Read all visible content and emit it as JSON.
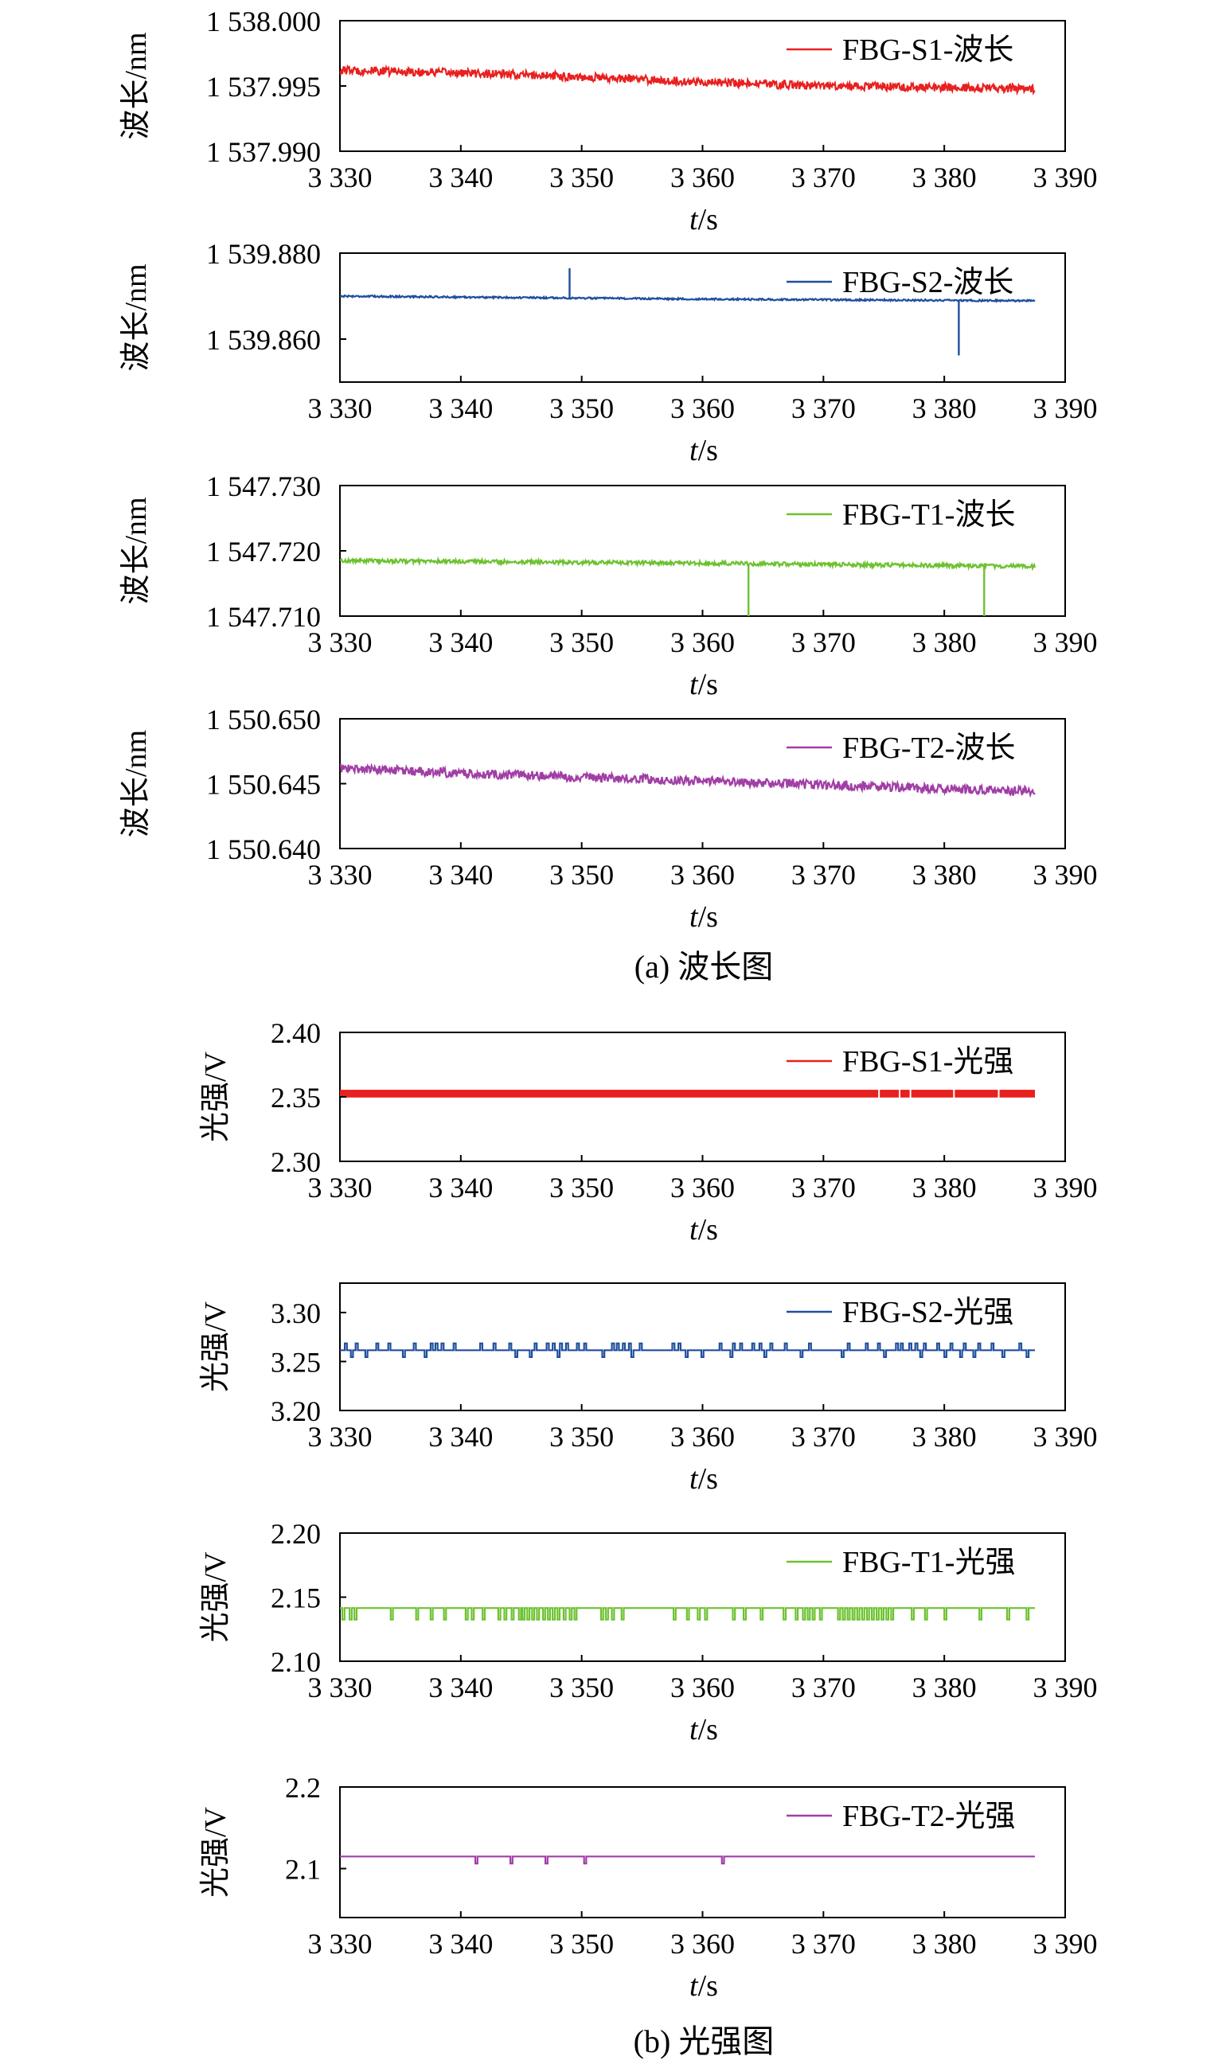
{
  "chart_data": [
    {
      "type": "line",
      "name": "wavelength-s1",
      "xlabel_italic": "t",
      "xlabel_unit": "/s",
      "ylabel": "波长/nm",
      "xlim": [
        3330,
        3390
      ],
      "xticks": [
        3330,
        3340,
        3350,
        3360,
        3370,
        3380,
        3390
      ],
      "xtick_labels": [
        "3 330",
        "3 340",
        "3 350",
        "3 360",
        "3 370",
        "3 380",
        "3 390"
      ],
      "ylim": [
        1537.99,
        1538.0
      ],
      "yticks": [
        1537.99,
        1537.995,
        1538.0
      ],
      "ytick_labels": [
        "1 537.990",
        "1 537.995",
        "1 538.000"
      ],
      "color": "#e8201f",
      "series": [
        {
          "name": "FBG-S1-波长",
          "x": [
            3330,
            3340,
            3350,
            3360,
            3370,
            3380,
            3387.5
          ],
          "y": [
            1537.9962,
            1537.996,
            1537.9957,
            1537.9953,
            1537.995,
            1537.9949,
            1537.9948
          ],
          "noise": 0.00032,
          "spikes": []
        }
      ]
    },
    {
      "type": "line",
      "name": "wavelength-s2",
      "xlabel_italic": "t",
      "xlabel_unit": "/s",
      "ylabel": "波长/nm",
      "xlim": [
        3330,
        3390
      ],
      "xticks": [
        3330,
        3340,
        3350,
        3360,
        3370,
        3380,
        3390
      ],
      "xtick_labels": [
        "3 330",
        "3 340",
        "3 350",
        "3 360",
        "3 370",
        "3 380",
        "3 390"
      ],
      "ylim": [
        1539.85,
        1539.88
      ],
      "yticks": [
        1539.86,
        1539.88
      ],
      "ytick_labels": [
        "1 539.860",
        "1 539.880"
      ],
      "color": "#1f4e9d",
      "series": [
        {
          "name": "FBG-S2-波长",
          "x": [
            3330,
            3360,
            3387.5
          ],
          "y": [
            1539.87,
            1539.8693,
            1539.8689
          ],
          "noise": 0.0002,
          "spikes": [
            [
              3349.0,
              1539.8765
            ],
            [
              3381.2,
              1539.8562
            ]
          ]
        }
      ]
    },
    {
      "type": "line",
      "name": "wavelength-t1",
      "xlabel_italic": "t",
      "xlabel_unit": "/s",
      "ylabel": "波长/nm",
      "xlim": [
        3330,
        3390
      ],
      "xticks": [
        3330,
        3340,
        3350,
        3360,
        3370,
        3380,
        3390
      ],
      "xtick_labels": [
        "3 330",
        "3 340",
        "3 350",
        "3 360",
        "3 370",
        "3 380",
        "3 390"
      ],
      "ylim": [
        1547.71,
        1547.73
      ],
      "yticks": [
        1547.71,
        1547.72,
        1547.73
      ],
      "ytick_labels": [
        "1 547.710",
        "1 547.720",
        "1 547.730"
      ],
      "color": "#6cc22f",
      "series": [
        {
          "name": "FBG-T1-波长",
          "x": [
            3330,
            3360,
            3387.5
          ],
          "y": [
            1547.7185,
            1547.7181,
            1547.7176
          ],
          "noise": 0.0003,
          "spikes": [
            [
              3363.8,
              1547.71
            ],
            [
              3383.3,
              1547.71
            ]
          ]
        }
      ]
    },
    {
      "type": "line",
      "name": "wavelength-t2",
      "xlabel_italic": "t",
      "xlabel_unit": "/s",
      "ylabel": "波长/nm",
      "xlim": [
        3330,
        3390
      ],
      "xticks": [
        3330,
        3340,
        3350,
        3360,
        3370,
        3380,
        3390
      ],
      "xtick_labels": [
        "3 330",
        "3 340",
        "3 350",
        "3 360",
        "3 370",
        "3 380",
        "3 390"
      ],
      "ylim": [
        1550.64,
        1550.65
      ],
      "yticks": [
        1550.64,
        1550.645,
        1550.65
      ],
      "ytick_labels": [
        "1 550.640",
        "1 550.645",
        "1 550.650"
      ],
      "color": "#a13ea6",
      "series": [
        {
          "name": "FBG-T2-波长",
          "x": [
            3330,
            3340,
            3350,
            3360,
            3370,
            3380,
            3387.5
          ],
          "y": [
            1550.6462,
            1550.6458,
            1550.6455,
            1550.6452,
            1550.6449,
            1550.6446,
            1550.6444
          ],
          "noise": 0.00035,
          "spikes": []
        }
      ]
    },
    {
      "type": "line",
      "name": "intensity-s1",
      "xlabel_italic": "t",
      "xlabel_unit": "/s",
      "ylabel": "光强/V",
      "xlim": [
        3330,
        3390
      ],
      "xticks": [
        3330,
        3340,
        3350,
        3360,
        3370,
        3380,
        3390
      ],
      "xtick_labels": [
        "3 330",
        "3 340",
        "3 350",
        "3 360",
        "3 370",
        "3 380",
        "3 390"
      ],
      "ylim": [
        2.3,
        2.4
      ],
      "yticks": [
        2.3,
        2.35,
        2.4
      ],
      "ytick_labels": [
        "2.30",
        "2.35",
        "2.40"
      ],
      "color": "#e8201f",
      "series": [
        {
          "name": "FBG-S1-光强",
          "x": [
            3330,
            3387.5
          ],
          "y": [
            2.3555,
            2.3555
          ],
          "low": 2.3495,
          "band": true
        }
      ]
    },
    {
      "type": "line",
      "name": "intensity-s2",
      "xlabel_italic": "t",
      "xlabel_unit": "/s",
      "ylabel": "光强/V",
      "xlim": [
        3330,
        3390
      ],
      "xticks": [
        3330,
        3340,
        3350,
        3360,
        3370,
        3380,
        3390
      ],
      "xtick_labels": [
        "3 330",
        "3 340",
        "3 350",
        "3 360",
        "3 370",
        "3 380",
        "3 390"
      ],
      "ylim": [
        3.2,
        3.33
      ],
      "yticks": [
        3.2,
        3.25,
        3.3
      ],
      "ytick_labels": [
        "3.20",
        "3.25",
        "3.30"
      ],
      "color": "#1f4e9d",
      "series": [
        {
          "name": "FBG-S2-光强",
          "x": [
            3330,
            3387.5
          ],
          "y": [
            3.2615,
            3.2615
          ],
          "up": 3.2685,
          "down": 3.2545,
          "pulses_up": [
            3330.4,
            3331.3,
            3333.0,
            3334.0,
            3336.1,
            3337.5,
            3337.9,
            3338.4,
            3339.4,
            3341.6,
            3342.7,
            3344.0,
            3346.1,
            3347.1,
            3347.6,
            3348.2,
            3348.7,
            3349.6,
            3350.2,
            3352.5,
            3352.9,
            3353.4,
            3353.9,
            3354.8,
            3357.5,
            3358.0,
            3361.4,
            3362.5,
            3363.1,
            3364.1,
            3364.7,
            3365.6,
            3366.8,
            3368.8,
            3372.0,
            3373.5,
            3374.5,
            3376.0,
            3376.4,
            3377.1,
            3377.6,
            3378.3,
            3379.4,
            3380.5,
            3381.6,
            3382.8,
            3383.9,
            3386.2
          ],
          "pulses_down": [
            3330.9,
            3332.1,
            3335.2,
            3337.0,
            3344.5,
            3345.7,
            3348.0,
            3351.7,
            3354.1,
            3358.6,
            3359.9,
            3362.3,
            3365.1,
            3368.1,
            3371.5,
            3375.0,
            3378.0,
            3380.0,
            3381.3,
            3382.4,
            3384.8,
            3386.8
          ]
        }
      ]
    },
    {
      "type": "line",
      "name": "intensity-t1",
      "xlabel_italic": "t",
      "xlabel_unit": "/s",
      "ylabel": "光强/V",
      "xlim": [
        3330,
        3390
      ],
      "xticks": [
        3330,
        3340,
        3350,
        3360,
        3370,
        3380,
        3390
      ],
      "xtick_labels": [
        "3 330",
        "3 340",
        "3 350",
        "3 360",
        "3 370",
        "3 380",
        "3 390"
      ],
      "ylim": [
        2.1,
        2.2
      ],
      "yticks": [
        2.1,
        2.15,
        2.2
      ],
      "ytick_labels": [
        "2.10",
        "2.15",
        "2.20"
      ],
      "color": "#6cc22f",
      "series": [
        {
          "name": "FBG-T1-光强",
          "x": [
            3330,
            3387.5
          ],
          "y": [
            2.1415,
            2.1415
          ],
          "down": 2.1325,
          "pulses_down": [
            3330.2,
            3330.8,
            3331.2,
            3334.2,
            3336.3,
            3337.5,
            3338.6,
            3340.4,
            3340.9,
            3341.8,
            3343.1,
            3343.6,
            3344.2,
            3344.8,
            3345.1,
            3345.5,
            3345.9,
            3346.3,
            3346.8,
            3347.2,
            3347.6,
            3348.0,
            3348.5,
            3349.0,
            3349.4,
            3351.6,
            3352.0,
            3352.5,
            3353.3,
            3357.6,
            3358.7,
            3359.6,
            3360.2,
            3362.5,
            3363.4,
            3364.8,
            3366.7,
            3367.7,
            3368.3,
            3368.7,
            3369.1,
            3369.7,
            3371.2,
            3371.6,
            3372.0,
            3372.4,
            3372.8,
            3373.2,
            3373.6,
            3374.0,
            3374.4,
            3374.8,
            3375.2,
            3375.6,
            3377.3,
            3378.4,
            3380.0,
            3382.9,
            3385.2,
            3386.8
          ]
        }
      ]
    },
    {
      "type": "line",
      "name": "intensity-t2",
      "xlabel_italic": "t",
      "xlabel_unit": "/s",
      "ylabel": "光强/V",
      "xlim": [
        3330,
        3390
      ],
      "xticks": [
        3330,
        3340,
        3350,
        3360,
        3370,
        3380,
        3390
      ],
      "xtick_labels": [
        "3 330",
        "3 340",
        "3 350",
        "3 360",
        "3 370",
        "3 380",
        "3 390"
      ],
      "ylim": [
        2.04,
        2.2
      ],
      "yticks": [
        2.1,
        2.2
      ],
      "ytick_labels": [
        "2.1",
        "2.2"
      ],
      "color": "#a13ea6",
      "series": [
        {
          "name": "FBG-T2-光强",
          "x": [
            3330,
            3387.5
          ],
          "y": [
            2.1148,
            2.1148
          ],
          "down": 2.1062,
          "pulses_down": [
            3341.2,
            3344.1,
            3347.0,
            3350.2,
            3361.6
          ]
        }
      ]
    }
  ],
  "captions": {
    "a": "(a) 波长图",
    "b": "(b) 光强图"
  }
}
